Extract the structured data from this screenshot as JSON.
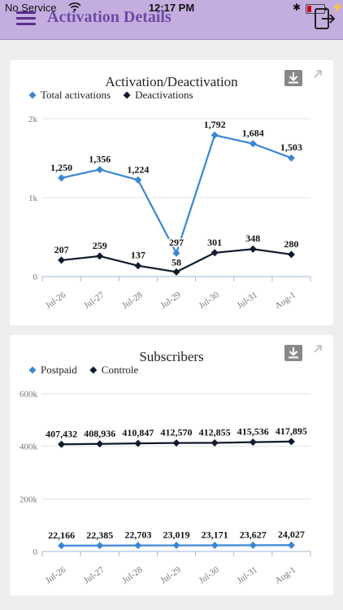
{
  "status_bar": {
    "carrier": "No Service",
    "time": "12:17 PM",
    "bluetooth": "✱",
    "charging": "⚡"
  },
  "header": {
    "title": "Activation Details"
  },
  "icons": {
    "menu": "hamburger-icon",
    "logout": "logout-icon",
    "download": "download-icon",
    "expand": "expand-icon"
  },
  "colors": {
    "header_bg": "#c4aee0",
    "title": "#6d4aa3",
    "series_blue": "#3a86d4",
    "series_dark": "#111a2e"
  },
  "chart_data": [
    {
      "type": "line",
      "title": "Activation/Deactivation",
      "categories": [
        "Jul-26",
        "Jul-27",
        "Jul-28",
        "Jul-29",
        "Jul-30",
        "Jul-31",
        "Aug-1"
      ],
      "series": [
        {
          "name": "Total activations",
          "values": [
            1250,
            1356,
            1224,
            297,
            1792,
            1684,
            1503
          ],
          "labels": [
            "1,250",
            "1,356",
            "1,224",
            "297",
            "1,792",
            "1,684",
            "1,503"
          ],
          "color": "#3a86d4"
        },
        {
          "name": "Deactivations",
          "values": [
            207,
            259,
            137,
            58,
            301,
            348,
            280
          ],
          "labels": [
            "207",
            "259",
            "137",
            "58",
            "301",
            "348",
            "280"
          ],
          "color": "#111a2e"
        }
      ],
      "ylim": [
        0,
        2000
      ],
      "yticks": [
        0,
        1000,
        2000
      ],
      "ytick_labels": [
        "0",
        "1k",
        "2k"
      ],
      "grid": true,
      "legend": "top-left"
    },
    {
      "type": "line",
      "title": "Subscribers",
      "categories": [
        "Jul-26",
        "Jul-27",
        "Jul-28",
        "Jul-29",
        "Jul-30",
        "Jul-31",
        "Aug-1"
      ],
      "series": [
        {
          "name": "Postpaid",
          "values": [
            22166,
            22385,
            22703,
            23019,
            23171,
            23627,
            24027
          ],
          "labels": [
            "22,166",
            "22,385",
            "22,703",
            "23,019",
            "23,171",
            "23,627",
            "24,027"
          ],
          "color": "#3a86d4"
        },
        {
          "name": "Controle",
          "values": [
            407432,
            408936,
            410847,
            412570,
            412855,
            415536,
            417895
          ],
          "labels": [
            "407,432",
            "408,936",
            "410,847",
            "412,570",
            "412,855",
            "415,536",
            "417,895"
          ],
          "color": "#111a2e"
        }
      ],
      "ylim": [
        0,
        600000
      ],
      "yticks": [
        0,
        200000,
        400000,
        600000
      ],
      "ytick_labels": [
        "0",
        "200k",
        "400k",
        "600k"
      ],
      "grid": true,
      "legend": "top-left"
    }
  ]
}
